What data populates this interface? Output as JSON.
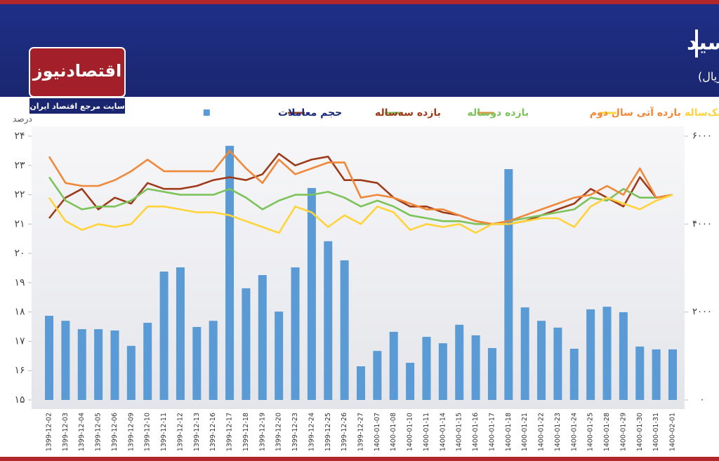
{
  "logo": {
    "name": "اقتصادنیوز",
    "tagline": "سایت مرجع اقتصاد ایران"
  },
  "chart_data": {
    "type": "combo",
    "title": "روند نرخ اوراق سررسید",
    "subtitle": "(واحد:میلیارد ریال)",
    "y_label": "درصد",
    "categories": [
      "1399-12-02",
      "1399-12-03",
      "1399-12-04",
      "1399-12-05",
      "1399-12-06",
      "1399-12-09",
      "1399-12-10",
      "1399-12-11",
      "1399-12-12",
      "1399-12-13",
      "1399-12-16",
      "1399-12-17",
      "1399-12-18",
      "1399-12-19",
      "1399-12-20",
      "1399-12-23",
      "1399-12-24",
      "1399-12-25",
      "1399-12-26",
      "1399-12-27",
      "1400-01-07",
      "1400-01-08",
      "1400-01-10",
      "1400-01-11",
      "1400-01-14",
      "1400-01-15",
      "1400-01-16",
      "1400-01-17",
      "1400-01-18",
      "1400-01-21",
      "1400-01-22",
      "1400-01-23",
      "1400-01-24",
      "1400-01-25",
      "1400-01-28",
      "1400-01-29",
      "1400-01-30",
      "1400-01-31",
      "1400-02-01"
    ],
    "series": [
      {
        "name": "حجم معاملات",
        "type": "bar",
        "axis": "y2",
        "color": "#5b9bd5",
        "values": [
          1915,
          1800,
          1610,
          1610,
          1580,
          1230,
          1755,
          2920,
          3015,
          1660,
          1800,
          5780,
          2540,
          2840,
          2010,
          3015,
          4820,
          3610,
          3175,
          765,
          1115,
          1550,
          845,
          1435,
          1290,
          1710,
          1470,
          1180,
          5250,
          2105,
          1800,
          1645,
          1165,
          2060,
          2120,
          1995,
          1215,
          1150,
          1150
        ]
      },
      {
        "name": "بازده سه‌ساله",
        "type": "line",
        "color": "#9e3b1b",
        "values": [
          21.2,
          21.9,
          22.2,
          21.5,
          21.9,
          21.7,
          22.4,
          22.2,
          22.2,
          22.3,
          22.5,
          22.6,
          22.5,
          22.7,
          23.4,
          23.0,
          23.2,
          23.3,
          22.5,
          22.5,
          22.4,
          21.9,
          21.6,
          21.6,
          21.4,
          21.3,
          21.1,
          21.0,
          21.0,
          21.1,
          21.3,
          21.5,
          21.7,
          22.2,
          21.9,
          21.6,
          22.6,
          21.9,
          22.0
        ]
      },
      {
        "name": "بازده دوساله",
        "type": "line",
        "color": "#7cc35a",
        "values": [
          22.6,
          21.8,
          21.5,
          21.6,
          21.6,
          21.8,
          22.2,
          22.1,
          22.0,
          22.0,
          22.0,
          22.2,
          21.9,
          21.5,
          21.8,
          22.0,
          22.0,
          22.1,
          21.9,
          21.6,
          21.8,
          21.6,
          21.3,
          21.2,
          21.1,
          21.1,
          21.0,
          21.0,
          21.1,
          21.2,
          21.3,
          21.4,
          21.5,
          21.9,
          21.8,
          22.2,
          21.9,
          21.9,
          22.0
        ]
      },
      {
        "name": "بازده آتی سال دوم",
        "type": "line",
        "color": "#f0883a",
        "values": [
          23.3,
          22.4,
          22.3,
          22.3,
          22.5,
          22.8,
          23.2,
          22.8,
          22.8,
          22.8,
          22.8,
          23.5,
          22.9,
          22.4,
          23.2,
          22.7,
          22.9,
          23.1,
          23.1,
          21.9,
          22.0,
          21.9,
          21.7,
          21.5,
          21.5,
          21.3,
          21.1,
          21.0,
          21.1,
          21.3,
          21.5,
          21.7,
          21.9,
          22.0,
          22.3,
          22.0,
          22.9,
          21.9,
          22.0
        ]
      },
      {
        "name": "بازده یک‌ساله",
        "type": "line",
        "color": "#ffd33a",
        "values": [
          21.9,
          21.1,
          20.8,
          21.0,
          20.9,
          21.0,
          21.6,
          21.6,
          21.5,
          21.4,
          21.4,
          21.3,
          21.1,
          20.9,
          20.7,
          21.6,
          21.4,
          20.9,
          21.3,
          21.0,
          21.6,
          21.4,
          20.8,
          21.0,
          20.9,
          21.0,
          20.7,
          21.0,
          21.0,
          21.1,
          21.2,
          21.2,
          20.9,
          21.6,
          21.9,
          21.7,
          21.5,
          21.8,
          22.0
        ]
      }
    ],
    "ylim": [
      15,
      24
    ],
    "yticks": [
      {
        "value": 15,
        "label": "۱۵"
      },
      {
        "value": 16,
        "label": "۱۶"
      },
      {
        "value": 17,
        "label": "۱۷"
      },
      {
        "value": 18,
        "label": "۱۸"
      },
      {
        "value": 19,
        "label": "۱۹"
      },
      {
        "value": 20,
        "label": "۲۰"
      },
      {
        "value": 21,
        "label": "۲۱"
      },
      {
        "value": 22,
        "label": "۲۲"
      },
      {
        "value": 23,
        "label": "۲۳"
      },
      {
        "value": 24,
        "label": "۲۴"
      }
    ],
    "y2lim": [
      0,
      6000
    ],
    "y2ticks": [
      {
        "value": 0,
        "label": "۰"
      },
      {
        "value": 2000,
        "label": "۲۰۰۰"
      },
      {
        "value": 4000,
        "label": "۴۰۰۰"
      },
      {
        "value": 6000,
        "label": "۶۰۰۰"
      }
    ]
  }
}
